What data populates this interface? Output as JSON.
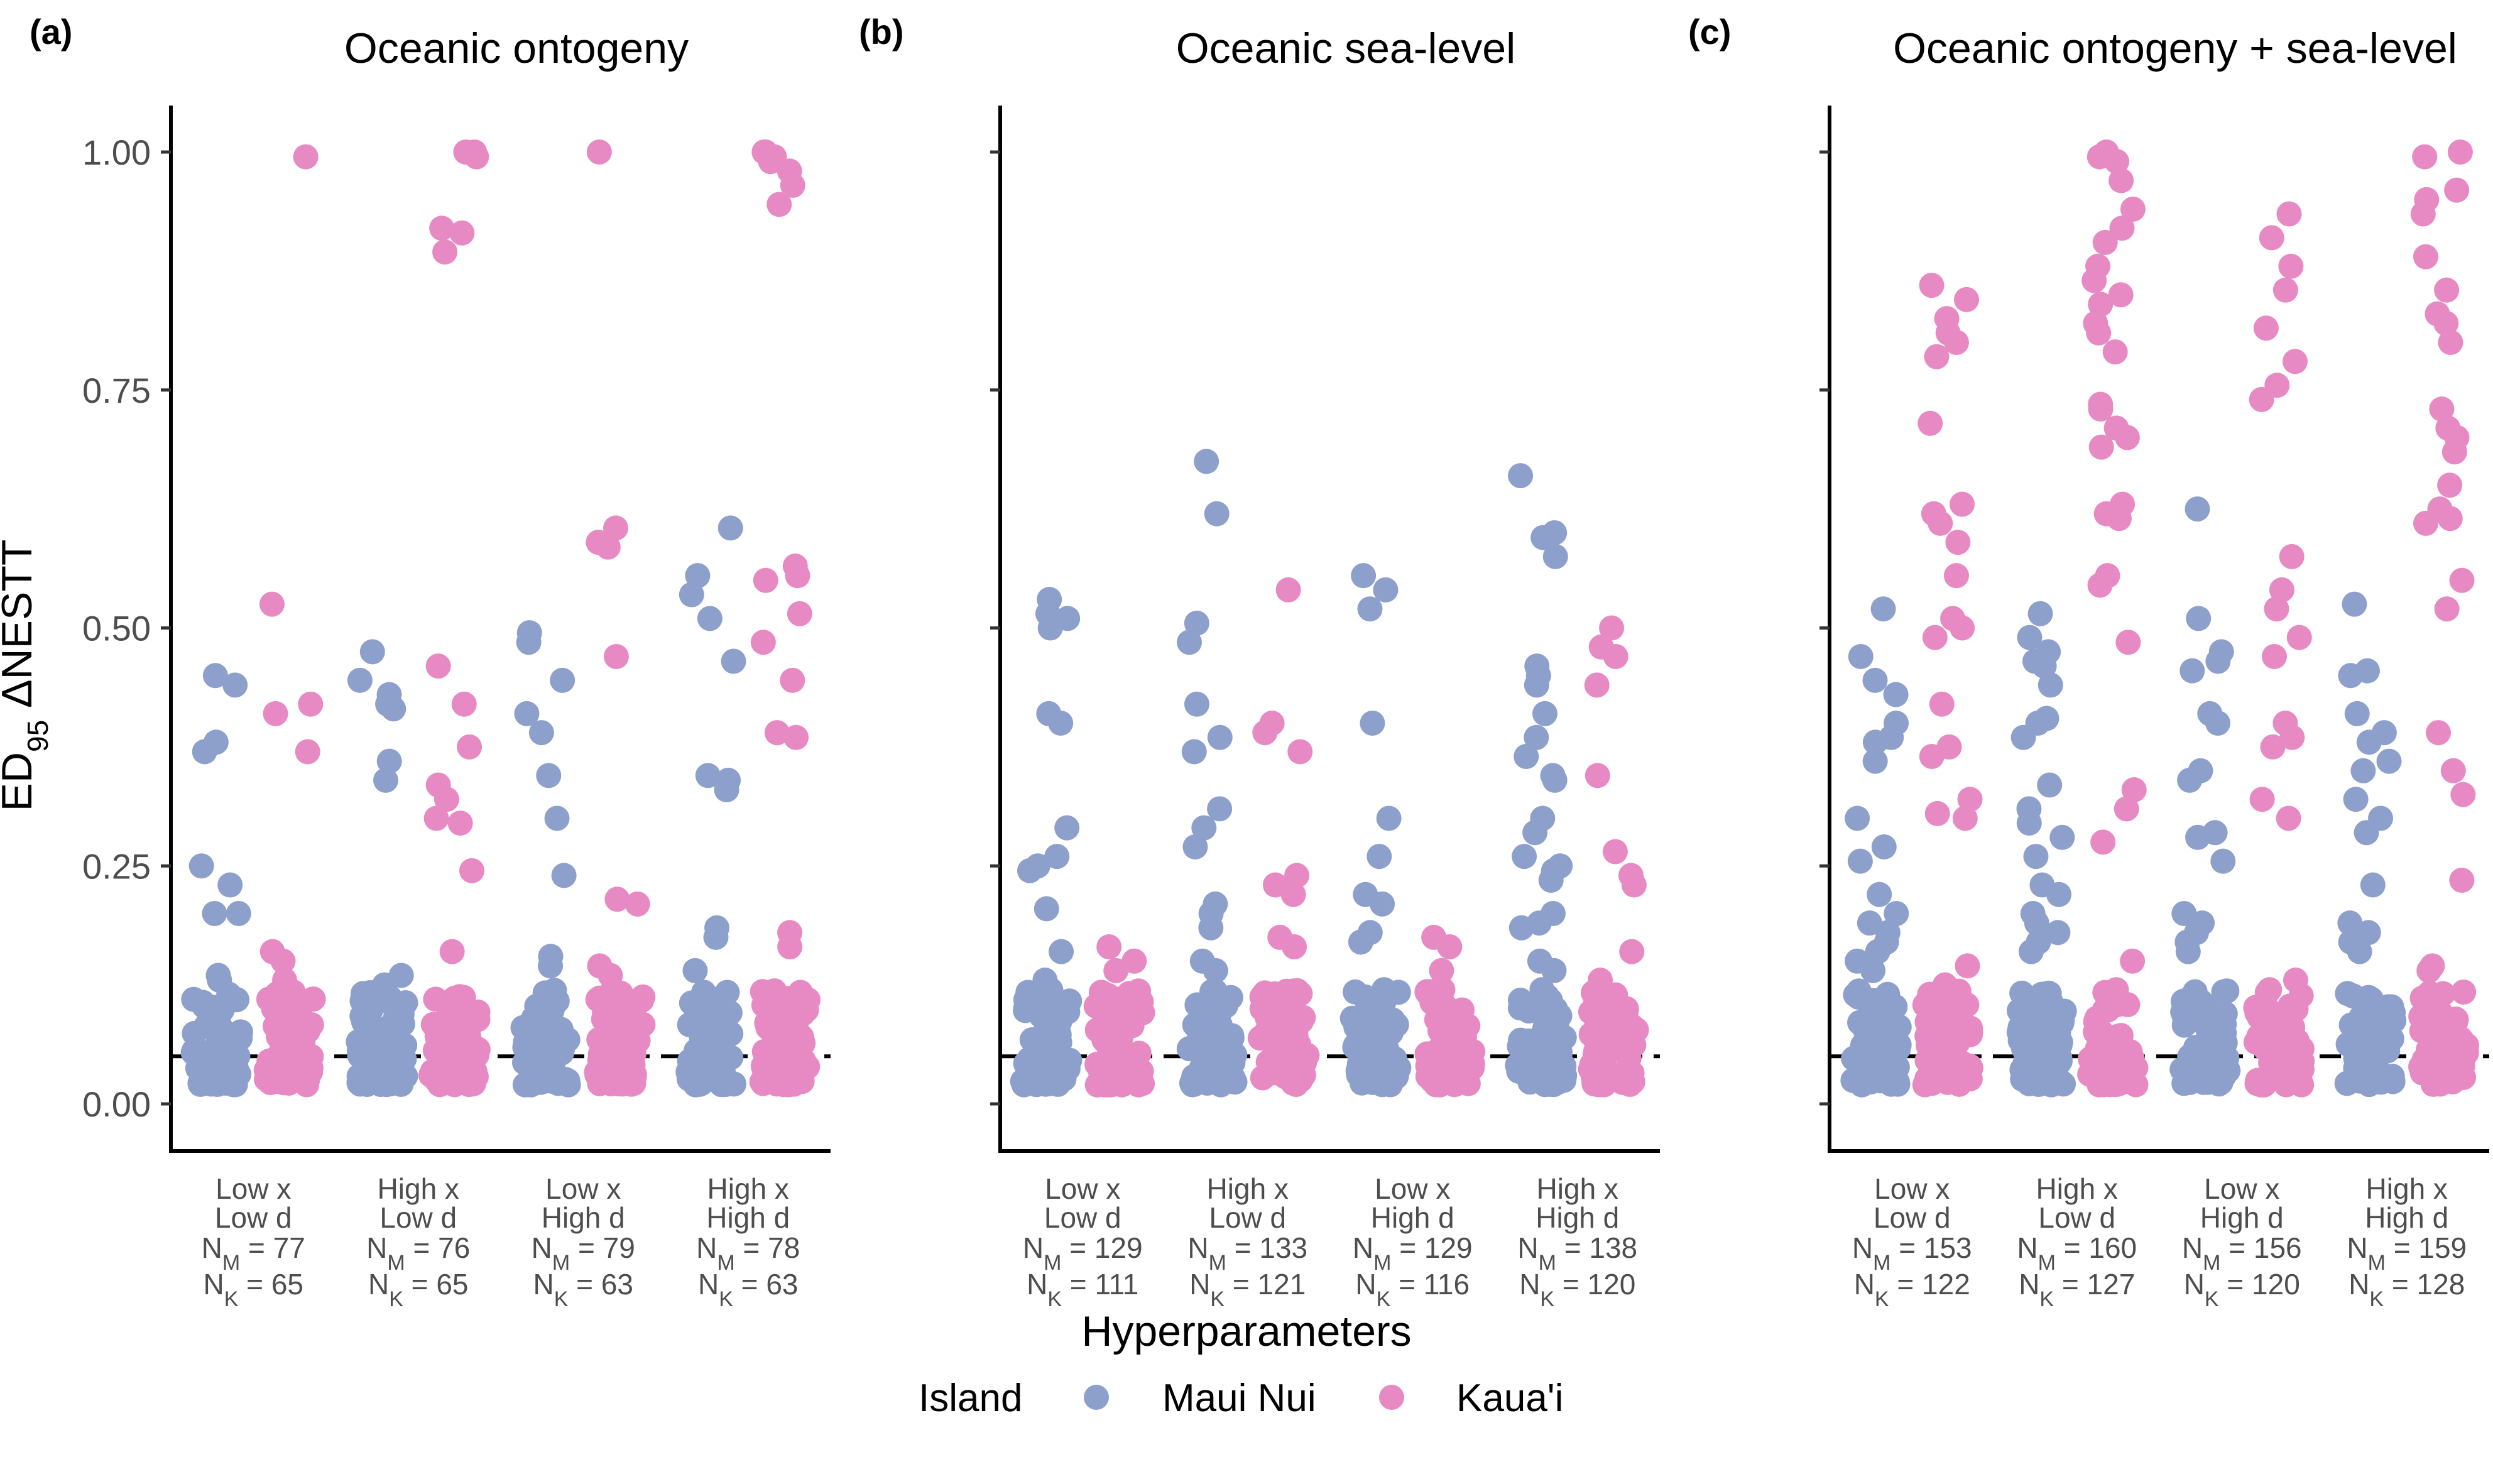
{
  "chart_data": {
    "type": "scatter",
    "ylabel_main": "ED",
    "ylabel_sub": "95",
    "ylabel_rest": " ΔNESTT",
    "xlabel": "Hyperparameters",
    "ylim": [
      0,
      1.05
    ],
    "yticks": [
      "0.00",
      "0.25",
      "0.50",
      "0.75",
      "1.00"
    ],
    "threshold": 0.05,
    "legend": {
      "title": "Island",
      "position": "bottom",
      "items": [
        {
          "name": "Maui Nui",
          "color": "#8d9fcb"
        },
        {
          "name": "Kaua'i",
          "color": "#e78ac3"
        }
      ]
    },
    "categories": [
      {
        "l1": "Low x",
        "l2": "Low d"
      },
      {
        "l1": "High x",
        "l2": "Low d"
      },
      {
        "l1": "Low x",
        "l2": "High d"
      },
      {
        "l1": "High x",
        "l2": "High d"
      }
    ],
    "panels": [
      {
        "label": "(a)",
        "title": "Oceanic ontogeny",
        "counts": [
          [
            "77",
            "65"
          ],
          [
            "76",
            "65"
          ],
          [
            "79",
            "63"
          ],
          [
            "78",
            "63"
          ]
        ],
        "groups": [
          {
            "maui": [
              0.45,
              0.44,
              0.38,
              0.37,
              0.25,
              0.23,
              0.2,
              0.2,
              0.135,
              0.13
            ],
            "kauai": [
              0.995,
              0.525,
              0.42,
              0.41,
              0.37,
              0.16,
              0.15,
              0.13,
              0.125
            ]
          },
          {
            "maui": [
              0.475,
              0.445,
              0.43,
              0.42,
              0.415,
              0.36,
              0.34,
              0.135,
              0.125,
              0.12
            ],
            "kauai": [
              1.0,
              1.0,
              0.995,
              0.92,
              0.915,
              0.895,
              0.46,
              0.42,
              0.375,
              0.335,
              0.32,
              0.3,
              0.295,
              0.245,
              0.16
            ]
          },
          {
            "maui": [
              0.495,
              0.485,
              0.445,
              0.41,
              0.39,
              0.345,
              0.3,
              0.24,
              0.155,
              0.145
            ],
            "kauai": [
              1.0,
              0.605,
              0.59,
              0.585,
              0.47,
              0.215,
              0.21,
              0.145,
              0.135
            ]
          },
          {
            "maui": [
              0.605,
              0.555,
              0.535,
              0.51,
              0.465,
              0.345,
              0.34,
              0.33,
              0.185,
              0.175,
              0.14
            ],
            "kauai": [
              1.0,
              1.0,
              0.995,
              0.99,
              0.98,
              0.965,
              0.945,
              0.565,
              0.555,
              0.55,
              0.515,
              0.485,
              0.445,
              0.39,
              0.385,
              0.18,
              0.165,
              0.11
            ]
          }
        ]
      },
      {
        "label": "(b)",
        "title": "Oceanic sea-level",
        "counts": [
          [
            "129",
            "111"
          ],
          [
            "133",
            "121"
          ],
          [
            "129",
            "116"
          ],
          [
            "138",
            "120"
          ]
        ],
        "groups": [
          {
            "maui": [
              0.53,
              0.515,
              0.51,
              0.5,
              0.41,
              0.4,
              0.29,
              0.26,
              0.25,
              0.245,
              0.205,
              0.16,
              0.13
            ],
            "kauai": [
              0.165,
              0.15,
              0.14,
              0.11
            ]
          },
          {
            "maui": [
              0.675,
              0.62,
              0.505,
              0.485,
              0.42,
              0.385,
              0.37,
              0.31,
              0.29,
              0.27,
              0.21,
              0.2,
              0.185,
              0.15,
              0.14
            ],
            "kauai": [
              0.54,
              0.4,
              0.39,
              0.37,
              0.24,
              0.23,
              0.22,
              0.175,
              0.165,
              0.11
            ]
          },
          {
            "maui": [
              0.555,
              0.54,
              0.52,
              0.4,
              0.3,
              0.26,
              0.22,
              0.21,
              0.18,
              0.17,
              0.12
            ],
            "kauai": [
              0.175,
              0.165,
              0.14,
              0.12
            ]
          },
          {
            "maui": [
              0.66,
              0.6,
              0.595,
              0.575,
              0.46,
              0.45,
              0.44,
              0.41,
              0.385,
              0.365,
              0.345,
              0.34,
              0.3,
              0.285,
              0.26,
              0.25,
              0.245,
              0.235,
              0.2,
              0.19,
              0.185,
              0.15,
              0.14,
              0.12
            ],
            "kauai": [
              0.5,
              0.48,
              0.47,
              0.44,
              0.345,
              0.265,
              0.24,
              0.23,
              0.16,
              0.13,
              0.12
            ]
          }
        ]
      },
      {
        "label": "(c)",
        "title": "Oceanic ontogeny + sea-level",
        "counts": [
          [
            "153",
            "122"
          ],
          [
            "160",
            "127"
          ],
          [
            "156",
            "120"
          ],
          [
            "159",
            "128"
          ]
        ],
        "groups": [
          {
            "maui": [
              0.52,
              0.47,
              0.445,
              0.43,
              0.4,
              0.385,
              0.38,
              0.36,
              0.3,
              0.27,
              0.255,
              0.22,
              0.2,
              0.19,
              0.18,
              0.17,
              0.16,
              0.15,
              0.14
            ],
            "kauai": [
              0.86,
              0.845,
              0.825,
              0.81,
              0.8,
              0.785,
              0.715,
              0.63,
              0.62,
              0.61,
              0.59,
              0.555,
              0.51,
              0.5,
              0.49,
              0.42,
              0.375,
              0.365,
              0.32,
              0.305,
              0.3,
              0.145,
              0.125
            ]
          },
          {
            "maui": [
              0.515,
              0.49,
              0.475,
              0.465,
              0.46,
              0.44,
              0.405,
              0.4,
              0.385,
              0.335,
              0.31,
              0.295,
              0.28,
              0.26,
              0.23,
              0.22,
              0.2,
              0.19,
              0.18,
              0.17,
              0.16
            ],
            "kauai": [
              1.0,
              0.995,
              0.99,
              0.97,
              0.94,
              0.92,
              0.905,
              0.88,
              0.865,
              0.85,
              0.84,
              0.82,
              0.81,
              0.79,
              0.735,
              0.73,
              0.71,
              0.7,
              0.69,
              0.63,
              0.62,
              0.615,
              0.555,
              0.545,
              0.485,
              0.33,
              0.31,
              0.275,
              0.15,
              0.12
            ]
          },
          {
            "maui": [
              0.625,
              0.51,
              0.475,
              0.465,
              0.455,
              0.41,
              0.4,
              0.35,
              0.34,
              0.285,
              0.28,
              0.255,
              0.2,
              0.19,
              0.18,
              0.17,
              0.16
            ],
            "kauai": [
              0.935,
              0.91,
              0.88,
              0.855,
              0.815,
              0.78,
              0.755,
              0.74,
              0.575,
              0.54,
              0.52,
              0.49,
              0.47,
              0.4,
              0.385,
              0.375,
              0.32,
              0.3,
              0.13,
              0.12
            ]
          },
          {
            "maui": [
              0.525,
              0.455,
              0.45,
              0.41,
              0.39,
              0.38,
              0.36,
              0.35,
              0.32,
              0.3,
              0.285,
              0.23,
              0.19,
              0.18,
              0.17,
              0.16
            ],
            "kauai": [
              1.0,
              0.995,
              0.96,
              0.95,
              0.935,
              0.89,
              0.855,
              0.83,
              0.82,
              0.8,
              0.73,
              0.71,
              0.7,
              0.685,
              0.65,
              0.625,
              0.615,
              0.61,
              0.55,
              0.52,
              0.39,
              0.35,
              0.325,
              0.235,
              0.145,
              0.14
            ]
          }
        ]
      }
    ]
  }
}
